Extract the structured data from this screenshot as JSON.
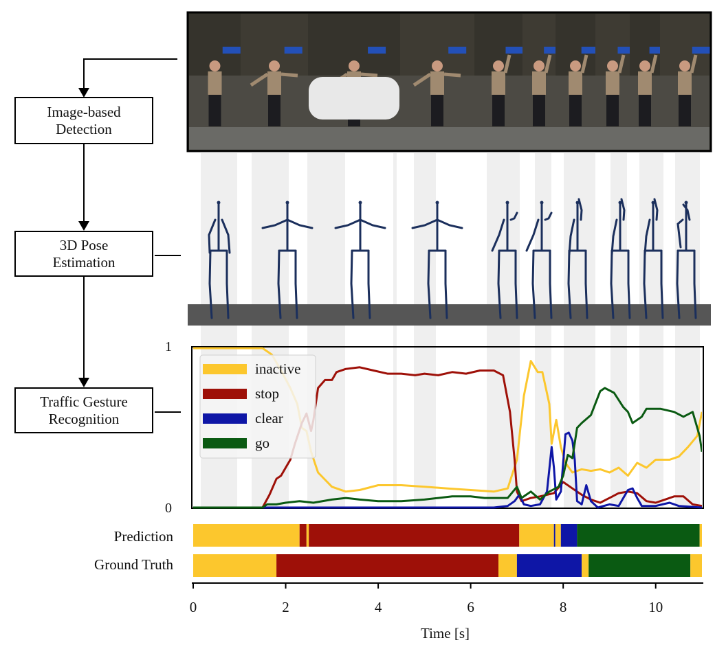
{
  "pipeline": {
    "steps": [
      {
        "id": "detection",
        "label": "Image-based\nDetection"
      },
      {
        "id": "pose",
        "label": "3D Pose\nEstimation"
      },
      {
        "id": "gesture",
        "label": "Traffic Gesture\nRecognition"
      }
    ]
  },
  "photo_strip": {
    "frame_count": 10,
    "palette": {
      "sky": "#3b3a36",
      "trees": "#2d2b24",
      "ground": "#6a6a66",
      "shirt": "#a08a70",
      "pants": "#1c1c20",
      "sign": "#2350b8"
    }
  },
  "skeletons": {
    "count": 10,
    "color": "#1b2f5c",
    "floor_color": "#565656",
    "band_color": "#efefef"
  },
  "rows": {
    "prediction": "Prediction",
    "ground_truth": "Ground Truth"
  },
  "axis": {
    "x_title": "Time [s]",
    "y_top": "1",
    "y_bottom": "0"
  },
  "colors": {
    "inactive": "#fcc72d",
    "stop": "#9e1008",
    "clear": "#0e16a6",
    "go": "#0a5a12"
  },
  "chart_data": {
    "type": "line",
    "xlabel": "Time [s]",
    "xlim": [
      0,
      11
    ],
    "ylim": [
      0,
      1
    ],
    "x_ticks": [
      0,
      2,
      4,
      6,
      8,
      10
    ],
    "legend": {
      "position": "top-left",
      "labels": [
        "inactive",
        "stop",
        "clear",
        "go"
      ]
    },
    "series": [
      {
        "name": "inactive",
        "color": "#fcc72d",
        "points": [
          [
            0,
            1.0
          ],
          [
            1.5,
            1.0
          ],
          [
            1.7,
            0.96
          ],
          [
            1.9,
            0.86
          ],
          [
            2.1,
            0.75
          ],
          [
            2.25,
            0.65
          ],
          [
            2.35,
            0.5
          ],
          [
            2.45,
            0.48
          ],
          [
            2.55,
            0.35
          ],
          [
            2.7,
            0.22
          ],
          [
            3.0,
            0.13
          ],
          [
            3.3,
            0.1
          ],
          [
            3.6,
            0.11
          ],
          [
            4.0,
            0.14
          ],
          [
            4.5,
            0.14
          ],
          [
            5.0,
            0.13
          ],
          [
            5.5,
            0.12
          ],
          [
            6.0,
            0.11
          ],
          [
            6.5,
            0.1
          ],
          [
            6.8,
            0.12
          ],
          [
            7.0,
            0.3
          ],
          [
            7.15,
            0.7
          ],
          [
            7.3,
            0.92
          ],
          [
            7.45,
            0.85
          ],
          [
            7.55,
            0.85
          ],
          [
            7.7,
            0.65
          ],
          [
            7.75,
            0.4
          ],
          [
            7.85,
            0.55
          ],
          [
            7.95,
            0.38
          ],
          [
            8.05,
            0.28
          ],
          [
            8.2,
            0.22
          ],
          [
            8.4,
            0.24
          ],
          [
            8.6,
            0.23
          ],
          [
            8.8,
            0.24
          ],
          [
            9.0,
            0.22
          ],
          [
            9.2,
            0.25
          ],
          [
            9.4,
            0.2
          ],
          [
            9.6,
            0.28
          ],
          [
            9.8,
            0.25
          ],
          [
            10.0,
            0.3
          ],
          [
            10.3,
            0.3
          ],
          [
            10.5,
            0.32
          ],
          [
            10.7,
            0.38
          ],
          [
            10.9,
            0.45
          ],
          [
            11.0,
            0.6
          ]
        ]
      },
      {
        "name": "stop",
        "color": "#9e1008",
        "points": [
          [
            0,
            0.0
          ],
          [
            1.5,
            0.0
          ],
          [
            1.65,
            0.08
          ],
          [
            1.8,
            0.18
          ],
          [
            1.9,
            0.2
          ],
          [
            2.0,
            0.25
          ],
          [
            2.1,
            0.3
          ],
          [
            2.2,
            0.4
          ],
          [
            2.35,
            0.53
          ],
          [
            2.45,
            0.59
          ],
          [
            2.55,
            0.48
          ],
          [
            2.6,
            0.55
          ],
          [
            2.7,
            0.75
          ],
          [
            2.85,
            0.8
          ],
          [
            3.0,
            0.8
          ],
          [
            3.1,
            0.85
          ],
          [
            3.3,
            0.87
          ],
          [
            3.6,
            0.88
          ],
          [
            3.9,
            0.86
          ],
          [
            4.2,
            0.84
          ],
          [
            4.5,
            0.84
          ],
          [
            4.8,
            0.83
          ],
          [
            5.0,
            0.84
          ],
          [
            5.3,
            0.83
          ],
          [
            5.6,
            0.85
          ],
          [
            5.9,
            0.84
          ],
          [
            6.2,
            0.86
          ],
          [
            6.5,
            0.86
          ],
          [
            6.7,
            0.83
          ],
          [
            6.85,
            0.6
          ],
          [
            6.95,
            0.3
          ],
          [
            7.0,
            0.1
          ],
          [
            7.1,
            0.04
          ],
          [
            7.3,
            0.06
          ],
          [
            7.5,
            0.07
          ],
          [
            7.8,
            0.09
          ],
          [
            8.0,
            0.16
          ],
          [
            8.2,
            0.12
          ],
          [
            8.4,
            0.08
          ],
          [
            8.6,
            0.05
          ],
          [
            8.8,
            0.03
          ],
          [
            9.0,
            0.06
          ],
          [
            9.2,
            0.09
          ],
          [
            9.4,
            0.1
          ],
          [
            9.6,
            0.09
          ],
          [
            9.8,
            0.04
          ],
          [
            10.0,
            0.03
          ],
          [
            10.2,
            0.05
          ],
          [
            10.4,
            0.07
          ],
          [
            10.6,
            0.07
          ],
          [
            10.8,
            0.02
          ],
          [
            11.0,
            0.01
          ]
        ]
      },
      {
        "name": "clear",
        "color": "#0e16a6",
        "points": [
          [
            0,
            0.0
          ],
          [
            6.5,
            0.0
          ],
          [
            6.8,
            0.01
          ],
          [
            6.95,
            0.04
          ],
          [
            7.05,
            0.08
          ],
          [
            7.15,
            0.02
          ],
          [
            7.3,
            0.01
          ],
          [
            7.5,
            0.02
          ],
          [
            7.65,
            0.1
          ],
          [
            7.75,
            0.38
          ],
          [
            7.8,
            0.25
          ],
          [
            7.85,
            0.05
          ],
          [
            7.95,
            0.1
          ],
          [
            8.05,
            0.46
          ],
          [
            8.12,
            0.47
          ],
          [
            8.2,
            0.42
          ],
          [
            8.25,
            0.3
          ],
          [
            8.3,
            0.04
          ],
          [
            8.4,
            0.02
          ],
          [
            8.5,
            0.14
          ],
          [
            8.6,
            0.04
          ],
          [
            8.75,
            0.0
          ],
          [
            9.0,
            0.02
          ],
          [
            9.2,
            0.01
          ],
          [
            9.4,
            0.11
          ],
          [
            9.5,
            0.12
          ],
          [
            9.6,
            0.06
          ],
          [
            9.7,
            0.01
          ],
          [
            10.0,
            0.01
          ],
          [
            10.3,
            0.03
          ],
          [
            10.5,
            0.01
          ],
          [
            11.0,
            0.0
          ]
        ]
      },
      {
        "name": "go",
        "color": "#0a5a12",
        "points": [
          [
            0,
            0.0
          ],
          [
            1.5,
            0.0
          ],
          [
            1.6,
            0.02
          ],
          [
            1.8,
            0.02
          ],
          [
            2.0,
            0.03
          ],
          [
            2.3,
            0.04
          ],
          [
            2.6,
            0.03
          ],
          [
            3.0,
            0.05
          ],
          [
            3.3,
            0.06
          ],
          [
            3.6,
            0.05
          ],
          [
            4.0,
            0.04
          ],
          [
            4.5,
            0.04
          ],
          [
            5.0,
            0.05
          ],
          [
            5.3,
            0.06
          ],
          [
            5.6,
            0.07
          ],
          [
            6.0,
            0.07
          ],
          [
            6.3,
            0.06
          ],
          [
            6.6,
            0.06
          ],
          [
            6.8,
            0.06
          ],
          [
            7.0,
            0.13
          ],
          [
            7.1,
            0.06
          ],
          [
            7.3,
            0.1
          ],
          [
            7.5,
            0.05
          ],
          [
            7.7,
            0.1
          ],
          [
            7.9,
            0.13
          ],
          [
            8.0,
            0.2
          ],
          [
            8.1,
            0.33
          ],
          [
            8.2,
            0.31
          ],
          [
            8.3,
            0.5
          ],
          [
            8.4,
            0.53
          ],
          [
            8.6,
            0.58
          ],
          [
            8.8,
            0.73
          ],
          [
            8.9,
            0.75
          ],
          [
            9.1,
            0.72
          ],
          [
            9.3,
            0.63
          ],
          [
            9.4,
            0.6
          ],
          [
            9.5,
            0.53
          ],
          [
            9.7,
            0.57
          ],
          [
            9.8,
            0.62
          ],
          [
            10.1,
            0.62
          ],
          [
            10.4,
            0.6
          ],
          [
            10.6,
            0.57
          ],
          [
            10.8,
            0.6
          ],
          [
            10.95,
            0.45
          ],
          [
            11.0,
            0.35
          ]
        ]
      }
    ],
    "bars": [
      {
        "row": "Prediction",
        "segments": [
          {
            "class": "inactive",
            "start": 0.0,
            "end": 2.3
          },
          {
            "class": "stop",
            "start": 2.3,
            "end": 2.45
          },
          {
            "class": "inactive",
            "start": 2.45,
            "end": 2.5
          },
          {
            "class": "stop",
            "start": 2.5,
            "end": 7.05
          },
          {
            "class": "inactive",
            "start": 7.05,
            "end": 7.8
          },
          {
            "class": "clear",
            "start": 7.8,
            "end": 7.83
          },
          {
            "class": "inactive",
            "start": 7.83,
            "end": 7.95
          },
          {
            "class": "clear",
            "start": 7.95,
            "end": 8.3
          },
          {
            "class": "go",
            "start": 8.3,
            "end": 10.95
          },
          {
            "class": "inactive",
            "start": 10.95,
            "end": 11.0
          }
        ]
      },
      {
        "row": "Ground Truth",
        "segments": [
          {
            "class": "inactive",
            "start": 0.0,
            "end": 1.8
          },
          {
            "class": "stop",
            "start": 1.8,
            "end": 6.6
          },
          {
            "class": "inactive",
            "start": 6.6,
            "end": 7.0
          },
          {
            "class": "clear",
            "start": 7.0,
            "end": 8.4
          },
          {
            "class": "inactive",
            "start": 8.4,
            "end": 8.55
          },
          {
            "class": "go",
            "start": 8.55,
            "end": 10.75
          },
          {
            "class": "inactive",
            "start": 10.75,
            "end": 11.0
          }
        ]
      }
    ]
  }
}
